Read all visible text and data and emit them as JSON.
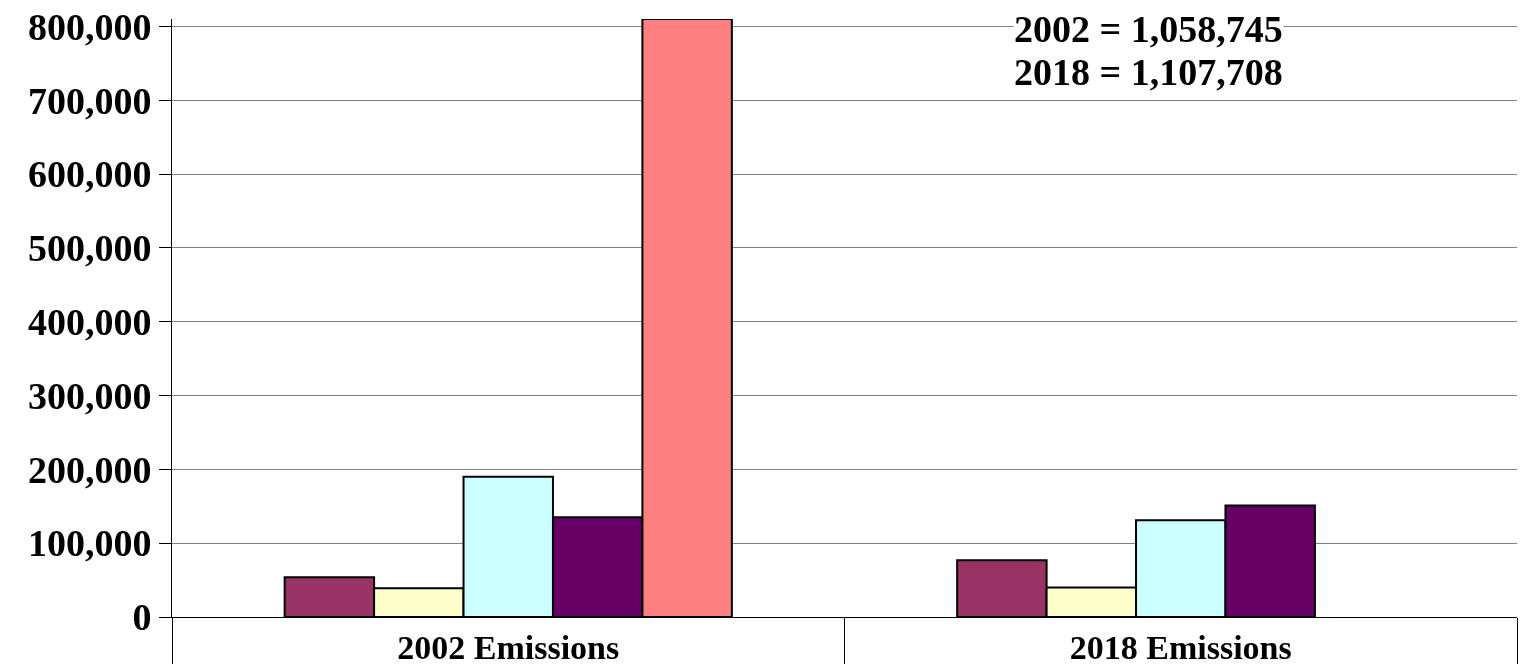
{
  "chart_data": {
    "type": "bar",
    "categories": [
      "2002 Emissions",
      "2018 Emissions"
    ],
    "series": [
      {
        "color": "#993366",
        "values": [
          54000,
          77000
        ]
      },
      {
        "color": "#ffffcc",
        "values": [
          39000,
          40000
        ]
      },
      {
        "color": "#ccffff",
        "values": [
          190000,
          131000
        ]
      },
      {
        "color": "#660066",
        "values": [
          135000,
          151000
        ]
      },
      {
        "color": "#ff8080",
        "values": [
          810000,
          null
        ]
      }
    ],
    "ylim": [
      0,
      810000
    ],
    "yticks": [
      0,
      {
        "value": 100000,
        "label": "100,000"
      },
      {
        "value": 200000,
        "label": "200,000"
      },
      {
        "value": 300000,
        "label": "300,000"
      },
      {
        "value": 400000,
        "label": "400,000"
      },
      {
        "value": 500000,
        "label": "500,000"
      },
      {
        "value": 600000,
        "label": "600,000"
      },
      {
        "value": 700000,
        "label": "700,000"
      },
      {
        "value": 800000,
        "label": "800,000"
      }
    ],
    "grid": "y",
    "annotations": [
      "2002 = 1,058,745",
      "2018 = 1,107,708"
    ]
  }
}
